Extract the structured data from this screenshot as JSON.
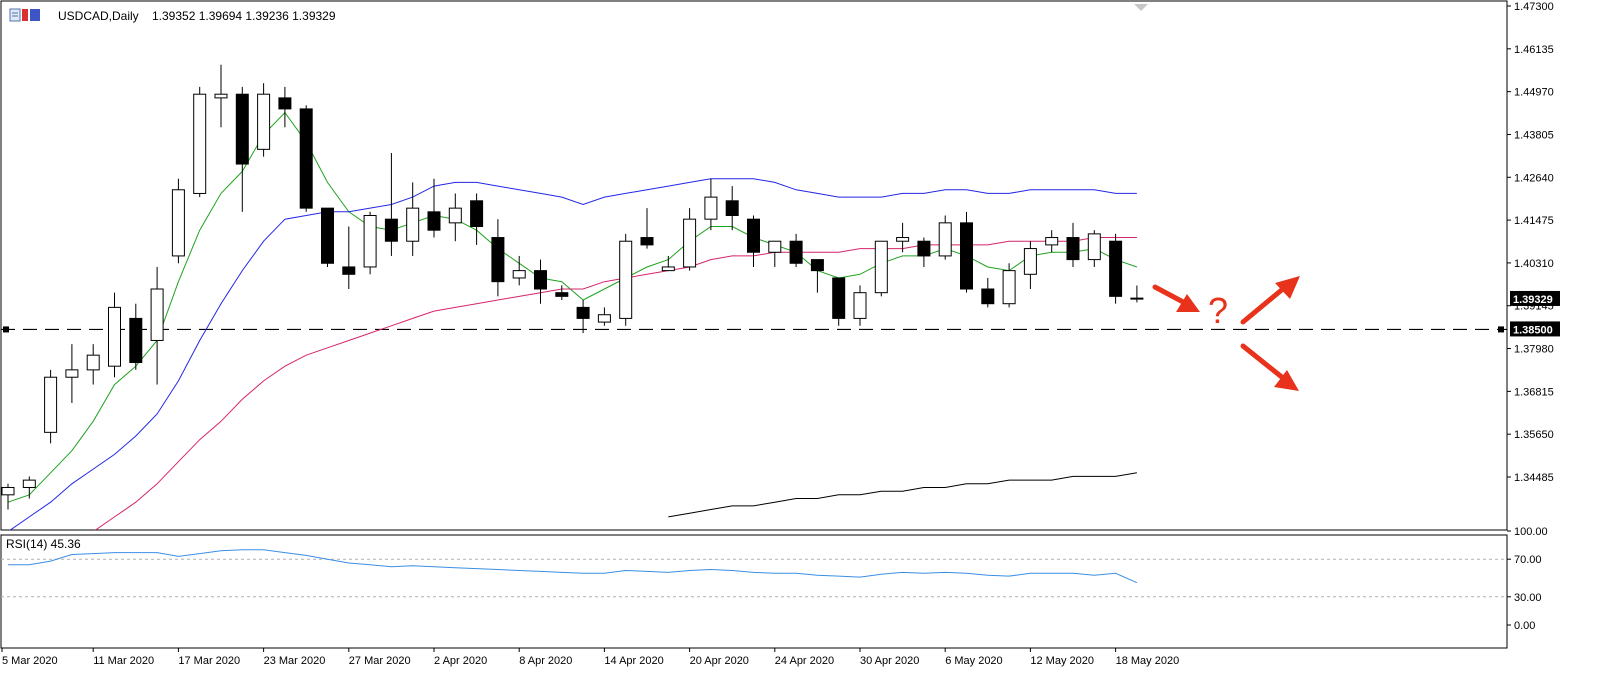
{
  "header": {
    "symbol": "USDCAD,Daily",
    "ohlc": "1.39352 1.39694 1.39236 1.39329"
  },
  "colors": {
    "candle_up_fill": "#ffffff",
    "candle_down_fill": "#000000",
    "ma_green": "#1fa31f",
    "ma_blue": "#2326e8",
    "ma_magenta": "#d6246e",
    "ma_black": "#000000",
    "rsi": "#3a8ee6",
    "arrows": "#e8321c",
    "grid_dashed": "#b0b0b0"
  },
  "chart_data": [
    {
      "type": "candlestick",
      "title": "USDCAD,Daily",
      "ylim": [
        1.335,
        1.473
      ],
      "price_ticks": [
        "1.47300",
        "1.46135",
        "1.44970",
        "1.43805",
        "1.42640",
        "1.41475",
        "1.40310",
        "1.39145",
        "1.37980",
        "1.36815",
        "1.35650",
        "1.34485"
      ],
      "current_price_label": "1.39329",
      "horizontal_line_label": "1.38500",
      "horizontal_line_value": 1.385,
      "date_labels": [
        {
          "label": "5 Mar 2020",
          "bar": 0
        },
        {
          "label": "11 Mar 2020",
          "bar": 4
        },
        {
          "label": "17 Mar 2020",
          "bar": 8
        },
        {
          "label": "23 Mar 2020",
          "bar": 12
        },
        {
          "label": "27 Mar 2020",
          "bar": 16
        },
        {
          "label": "2 Apr 2020",
          "bar": 20
        },
        {
          "label": "8 Apr 2020",
          "bar": 24
        },
        {
          "label": "14 Apr 2020",
          "bar": 28
        },
        {
          "label": "20 Apr 2020",
          "bar": 32
        },
        {
          "label": "24 Apr 2020",
          "bar": 36
        },
        {
          "label": "30 Apr 2020",
          "bar": 40
        },
        {
          "label": "6 May 2020",
          "bar": 44
        },
        {
          "label": "12 May 2020",
          "bar": 48
        },
        {
          "label": "18 May 2020",
          "bar": 52
        }
      ],
      "candles": [
        [
          1.34,
          1.343,
          1.336,
          1.342
        ],
        [
          1.342,
          1.345,
          1.339,
          1.344
        ],
        [
          1.357,
          1.374,
          1.354,
          1.372
        ],
        [
          1.372,
          1.381,
          1.365,
          1.374
        ],
        [
          1.374,
          1.381,
          1.37,
          1.378
        ],
        [
          1.375,
          1.395,
          1.372,
          1.391
        ],
        [
          1.388,
          1.392,
          1.374,
          1.376
        ],
        [
          1.382,
          1.402,
          1.37,
          1.396
        ],
        [
          1.405,
          1.426,
          1.403,
          1.423
        ],
        [
          1.422,
          1.451,
          1.421,
          1.449
        ],
        [
          1.448,
          1.457,
          1.44,
          1.449
        ],
        [
          1.449,
          1.451,
          1.417,
          1.43
        ],
        [
          1.434,
          1.452,
          1.432,
          1.449
        ],
        [
          1.448,
          1.451,
          1.44,
          1.445
        ],
        [
          1.445,
          1.446,
          1.417,
          1.418
        ],
        [
          1.418,
          1.418,
          1.402,
          1.403
        ],
        [
          1.402,
          1.413,
          1.396,
          1.4
        ],
        [
          1.402,
          1.417,
          1.4,
          1.416
        ],
        [
          1.415,
          1.433,
          1.405,
          1.409
        ],
        [
          1.409,
          1.425,
          1.405,
          1.418
        ],
        [
          1.417,
          1.426,
          1.41,
          1.412
        ],
        [
          1.414,
          1.422,
          1.409,
          1.418
        ],
        [
          1.42,
          1.422,
          1.408,
          1.413
        ],
        [
          1.41,
          1.415,
          1.394,
          1.398
        ],
        [
          1.399,
          1.405,
          1.397,
          1.401
        ],
        [
          1.401,
          1.404,
          1.392,
          1.396
        ],
        [
          1.395,
          1.397,
          1.393,
          1.394
        ],
        [
          1.391,
          1.393,
          1.384,
          1.388
        ],
        [
          1.387,
          1.391,
          1.386,
          1.389
        ],
        [
          1.388,
          1.411,
          1.386,
          1.409
        ],
        [
          1.41,
          1.418,
          1.407,
          1.408
        ],
        [
          1.401,
          1.405,
          1.401,
          1.402
        ],
        [
          1.402,
          1.418,
          1.401,
          1.415
        ],
        [
          1.415,
          1.426,
          1.412,
          1.421
        ],
        [
          1.42,
          1.424,
          1.412,
          1.416
        ],
        [
          1.415,
          1.416,
          1.402,
          1.406
        ],
        [
          1.406,
          1.409,
          1.402,
          1.409
        ],
        [
          1.409,
          1.411,
          1.402,
          1.403
        ],
        [
          1.404,
          1.403,
          1.395,
          1.401
        ],
        [
          1.399,
          1.399,
          1.386,
          1.388
        ],
        [
          1.388,
          1.397,
          1.386,
          1.395
        ],
        [
          1.395,
          1.409,
          1.394,
          1.409
        ],
        [
          1.409,
          1.414,
          1.406,
          1.41
        ],
        [
          1.409,
          1.41,
          1.402,
          1.405
        ],
        [
          1.405,
          1.416,
          1.404,
          1.414
        ],
        [
          1.414,
          1.417,
          1.395,
          1.396
        ],
        [
          1.396,
          1.399,
          1.391,
          1.392
        ],
        [
          1.392,
          1.403,
          1.391,
          1.401
        ],
        [
          1.4,
          1.409,
          1.396,
          1.407
        ],
        [
          1.408,
          1.412,
          1.406,
          1.41
        ],
        [
          1.41,
          1.414,
          1.402,
          1.404
        ],
        [
          1.404,
          1.412,
          1.402,
          1.411
        ],
        [
          1.409,
          1.411,
          1.392,
          1.394
        ],
        [
          1.39352,
          1.39694,
          1.39236,
          1.39329
        ]
      ],
      "moving_averages": [
        {
          "color": "#1fa31f",
          "values": [
            1.338,
            1.34,
            1.346,
            1.352,
            1.36,
            1.37,
            1.375,
            1.382,
            1.398,
            1.412,
            1.422,
            1.428,
            1.438,
            1.444,
            1.436,
            1.425,
            1.417,
            1.413,
            1.412,
            1.414,
            1.416,
            1.415,
            1.412,
            1.407,
            1.403,
            1.399,
            1.398,
            1.393,
            1.396,
            1.399,
            1.402,
            1.404,
            1.409,
            1.413,
            1.413,
            1.41,
            1.408,
            1.406,
            1.401,
            1.399,
            1.4,
            1.403,
            1.405,
            1.405,
            1.407,
            1.405,
            1.402,
            1.401,
            1.405,
            1.406,
            1.406,
            1.407,
            1.404,
            1.402
          ]
        },
        {
          "color": "#2326e8",
          "values": [
            1.33,
            1.334,
            1.338,
            1.343,
            1.347,
            1.351,
            1.356,
            1.362,
            1.371,
            1.382,
            1.392,
            1.401,
            1.409,
            1.415,
            1.416,
            1.417,
            1.417,
            1.418,
            1.419,
            1.421,
            1.424,
            1.425,
            1.425,
            1.424,
            1.423,
            1.422,
            1.421,
            1.419,
            1.421,
            1.422,
            1.423,
            1.424,
            1.425,
            1.426,
            1.426,
            1.426,
            1.425,
            1.423,
            1.422,
            1.421,
            1.421,
            1.421,
            1.422,
            1.422,
            1.423,
            1.423,
            1.422,
            1.422,
            1.423,
            1.423,
            1.423,
            1.423,
            1.422,
            1.422
          ]
        },
        {
          "color": "#d6246e",
          "values": [
            1.318,
            1.321,
            1.324,
            1.327,
            1.33,
            1.334,
            1.338,
            1.343,
            1.349,
            1.355,
            1.36,
            1.366,
            1.371,
            1.375,
            1.378,
            1.38,
            1.382,
            1.384,
            1.386,
            1.388,
            1.39,
            1.391,
            1.392,
            1.393,
            1.394,
            1.395,
            1.396,
            1.396,
            1.398,
            1.399,
            1.4,
            1.401,
            1.402,
            1.404,
            1.405,
            1.405,
            1.406,
            1.406,
            1.406,
            1.406,
            1.407,
            1.407,
            1.407,
            1.408,
            1.408,
            1.408,
            1.408,
            1.409,
            1.409,
            1.409,
            1.409,
            1.41,
            1.41,
            1.41
          ]
        },
        {
          "color": "#000000",
          "values": [
            null,
            null,
            null,
            null,
            null,
            null,
            null,
            null,
            null,
            null,
            null,
            null,
            null,
            null,
            null,
            null,
            null,
            null,
            null,
            null,
            null,
            null,
            null,
            null,
            null,
            null,
            null,
            null,
            null,
            null,
            null,
            1.334,
            1.335,
            1.336,
            1.337,
            1.337,
            1.338,
            1.339,
            1.339,
            1.34,
            1.34,
            1.341,
            1.341,
            1.342,
            1.342,
            1.343,
            1.343,
            1.344,
            1.344,
            1.344,
            1.345,
            1.345,
            1.345,
            1.346
          ]
        }
      ]
    },
    {
      "type": "line",
      "title": "RSI(14) 45.36",
      "ylim": [
        0,
        100
      ],
      "y_ticks": [
        "100.00",
        "70.00",
        "30.00",
        "0.00"
      ],
      "levels": [
        70,
        30
      ],
      "values": [
        64,
        64,
        68,
        75,
        76,
        77,
        77,
        77,
        73,
        76,
        79,
        80,
        80,
        77,
        74,
        70,
        66,
        64,
        62,
        63,
        62,
        61,
        60,
        59,
        58,
        57,
        56,
        55,
        55,
        58,
        57,
        56,
        58,
        59,
        58,
        56,
        55,
        55,
        53,
        52,
        51,
        54,
        56,
        55,
        56,
        55,
        53,
        52,
        55,
        55,
        55,
        53,
        55,
        45
      ]
    }
  ],
  "annotations": {
    "question_mark": "?"
  }
}
